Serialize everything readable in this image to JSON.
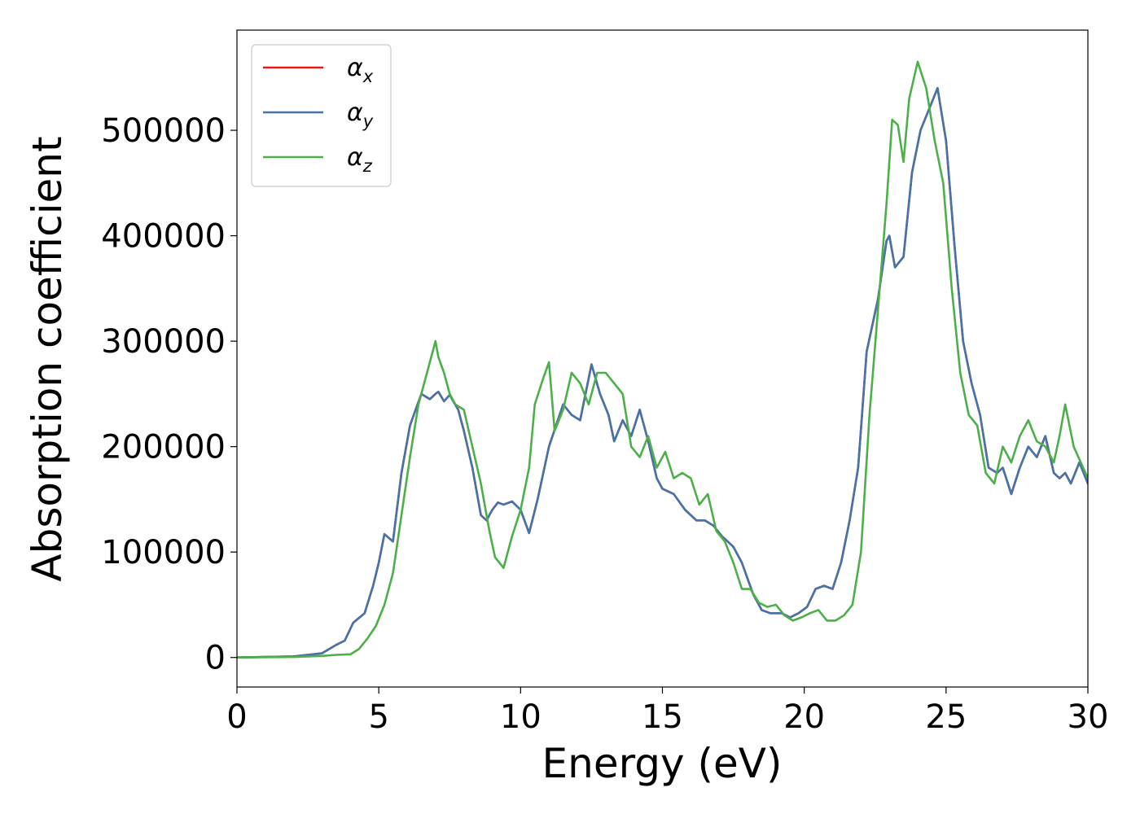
{
  "chart_data": {
    "type": "line",
    "xlabel": "Energy (eV)",
    "ylabel": "Absorption coefficient",
    "xlim": [
      0,
      30
    ],
    "ylim": [
      -28000,
      595000
    ],
    "xticks": [
      0,
      5,
      10,
      15,
      20,
      25,
      30
    ],
    "yticks": [
      0,
      100000,
      200000,
      300000,
      400000,
      500000
    ],
    "grid": false,
    "legend_position": "top-left",
    "series": [
      {
        "name": "α_x",
        "symbol": "α",
        "subscript": "x",
        "color": "#e41a1c",
        "x": [
          0,
          2,
          3,
          3.5,
          3.8,
          4.1,
          4.5,
          4.8,
          5.0,
          5.2,
          5.5,
          5.8,
          6.1,
          6.5,
          6.8,
          7.0,
          7.1,
          7.3,
          7.5,
          7.8,
          8.0,
          8.3,
          8.6,
          8.8,
          9.0,
          9.2,
          9.4,
          9.7,
          10.0,
          10.3,
          10.6,
          11.0,
          11.5,
          11.8,
          12.1,
          12.5,
          12.8,
          13.1,
          13.3,
          13.6,
          13.9,
          14.2,
          14.5,
          14.8,
          15.0,
          15.4,
          15.8,
          16.2,
          16.5,
          16.8,
          17.1,
          17.5,
          17.8,
          18.2,
          18.5,
          18.8,
          19.2,
          19.5,
          19.8,
          20.1,
          20.4,
          20.7,
          21.0,
          21.3,
          21.6,
          21.9,
          22.2,
          22.6,
          22.9,
          23.0,
          23.2,
          23.5,
          23.8,
          24.1,
          24.4,
          24.7,
          25.0,
          25.3,
          25.6,
          25.9,
          26.2,
          26.5,
          26.8,
          27.0,
          27.3,
          27.6,
          27.9,
          28.2,
          28.5,
          28.8,
          29.0,
          29.2,
          29.4,
          29.7,
          30.0
        ],
        "y": [
          0,
          1000,
          4000,
          12000,
          16000,
          33000,
          42000,
          68000,
          90000,
          117000,
          110000,
          175000,
          220000,
          250000,
          245000,
          250000,
          252000,
          243000,
          249000,
          235000,
          215000,
          180000,
          135000,
          130000,
          140000,
          147000,
          145000,
          148000,
          140000,
          118000,
          150000,
          200000,
          240000,
          230000,
          225000,
          278000,
          250000,
          230000,
          205000,
          225000,
          210000,
          235000,
          205000,
          170000,
          160000,
          155000,
          140000,
          130000,
          130000,
          125000,
          115000,
          105000,
          90000,
          60000,
          45000,
          42000,
          42000,
          38000,
          42000,
          48000,
          65000,
          68000,
          65000,
          90000,
          130000,
          180000,
          290000,
          340000,
          395000,
          400000,
          370000,
          380000,
          460000,
          500000,
          520000,
          540000,
          490000,
          390000,
          300000,
          260000,
          230000,
          180000,
          175000,
          180000,
          155000,
          180000,
          200000,
          190000,
          210000,
          175000,
          170000,
          175000,
          165000,
          185000,
          165000
        ]
      },
      {
        "name": "α_y",
        "symbol": "α",
        "subscript": "y",
        "color": "#4474a9",
        "x": [
          0,
          2,
          3,
          3.5,
          3.8,
          4.1,
          4.5,
          4.8,
          5.0,
          5.2,
          5.5,
          5.8,
          6.1,
          6.5,
          6.8,
          7.0,
          7.1,
          7.3,
          7.5,
          7.8,
          8.0,
          8.3,
          8.6,
          8.8,
          9.0,
          9.2,
          9.4,
          9.7,
          10.0,
          10.3,
          10.6,
          11.0,
          11.5,
          11.8,
          12.1,
          12.5,
          12.8,
          13.1,
          13.3,
          13.6,
          13.9,
          14.2,
          14.5,
          14.8,
          15.0,
          15.4,
          15.8,
          16.2,
          16.5,
          16.8,
          17.1,
          17.5,
          17.8,
          18.2,
          18.5,
          18.8,
          19.2,
          19.5,
          19.8,
          20.1,
          20.4,
          20.7,
          21.0,
          21.3,
          21.6,
          21.9,
          22.2,
          22.6,
          22.9,
          23.0,
          23.2,
          23.5,
          23.8,
          24.1,
          24.4,
          24.7,
          25.0,
          25.3,
          25.6,
          25.9,
          26.2,
          26.5,
          26.8,
          27.0,
          27.3,
          27.6,
          27.9,
          28.2,
          28.5,
          28.8,
          29.0,
          29.2,
          29.4,
          29.7,
          30.0
        ],
        "y": [
          0,
          1000,
          4000,
          12000,
          16000,
          33000,
          42000,
          68000,
          90000,
          117000,
          110000,
          175000,
          220000,
          250000,
          245000,
          250000,
          252000,
          243000,
          249000,
          235000,
          215000,
          180000,
          135000,
          130000,
          140000,
          147000,
          145000,
          148000,
          140000,
          118000,
          150000,
          200000,
          240000,
          230000,
          225000,
          278000,
          250000,
          230000,
          205000,
          225000,
          210000,
          235000,
          205000,
          170000,
          160000,
          155000,
          140000,
          130000,
          130000,
          125000,
          115000,
          105000,
          90000,
          60000,
          45000,
          42000,
          42000,
          38000,
          42000,
          48000,
          65000,
          68000,
          65000,
          90000,
          130000,
          180000,
          290000,
          340000,
          395000,
          400000,
          370000,
          380000,
          460000,
          500000,
          520000,
          540000,
          490000,
          390000,
          300000,
          260000,
          230000,
          180000,
          175000,
          180000,
          155000,
          180000,
          200000,
          190000,
          210000,
          175000,
          170000,
          175000,
          165000,
          185000,
          165000
        ]
      },
      {
        "name": "α_z",
        "symbol": "α",
        "subscript": "z",
        "color": "#4daf4a",
        "x": [
          0,
          2,
          3,
          3.5,
          4.0,
          4.3,
          4.6,
          4.9,
          5.2,
          5.5,
          5.8,
          6.1,
          6.4,
          6.7,
          7.0,
          7.1,
          7.3,
          7.5,
          7.7,
          8.0,
          8.3,
          8.6,
          8.9,
          9.1,
          9.4,
          9.7,
          10.0,
          10.3,
          10.5,
          10.8,
          11.0,
          11.2,
          11.5,
          11.8,
          12.1,
          12.4,
          12.7,
          13.0,
          13.3,
          13.6,
          13.9,
          14.2,
          14.5,
          14.8,
          15.1,
          15.4,
          15.7,
          16.0,
          16.3,
          16.6,
          16.9,
          17.2,
          17.5,
          17.8,
          18.1,
          18.4,
          18.7,
          19.0,
          19.3,
          19.6,
          19.9,
          20.2,
          20.5,
          20.8,
          21.1,
          21.4,
          21.7,
          22.0,
          22.3,
          22.6,
          22.9,
          23.1,
          23.3,
          23.5,
          23.7,
          24.0,
          24.3,
          24.6,
          24.9,
          25.2,
          25.5,
          25.8,
          26.1,
          26.4,
          26.7,
          27.0,
          27.3,
          27.6,
          27.9,
          28.2,
          28.5,
          28.8,
          29.0,
          29.2,
          29.5,
          30.0
        ],
        "y": [
          0,
          500,
          1500,
          2500,
          3000,
          8000,
          18000,
          30000,
          50000,
          80000,
          135000,
          190000,
          240000,
          270000,
          300000,
          285000,
          270000,
          250000,
          240000,
          235000,
          200000,
          165000,
          120000,
          95000,
          85000,
          115000,
          140000,
          180000,
          240000,
          265000,
          280000,
          215000,
          235000,
          270000,
          260000,
          240000,
          270000,
          270000,
          260000,
          250000,
          200000,
          190000,
          210000,
          180000,
          195000,
          170000,
          175000,
          170000,
          145000,
          155000,
          120000,
          110000,
          90000,
          65000,
          65000,
          52000,
          48000,
          50000,
          40000,
          35000,
          38000,
          42000,
          45000,
          35000,
          35000,
          40000,
          50000,
          100000,
          230000,
          330000,
          430000,
          510000,
          505000,
          470000,
          530000,
          565000,
          540000,
          490000,
          450000,
          350000,
          270000,
          230000,
          220000,
          175000,
          165000,
          200000,
          185000,
          210000,
          225000,
          205000,
          200000,
          185000,
          210000,
          240000,
          200000,
          170000
        ]
      }
    ]
  }
}
